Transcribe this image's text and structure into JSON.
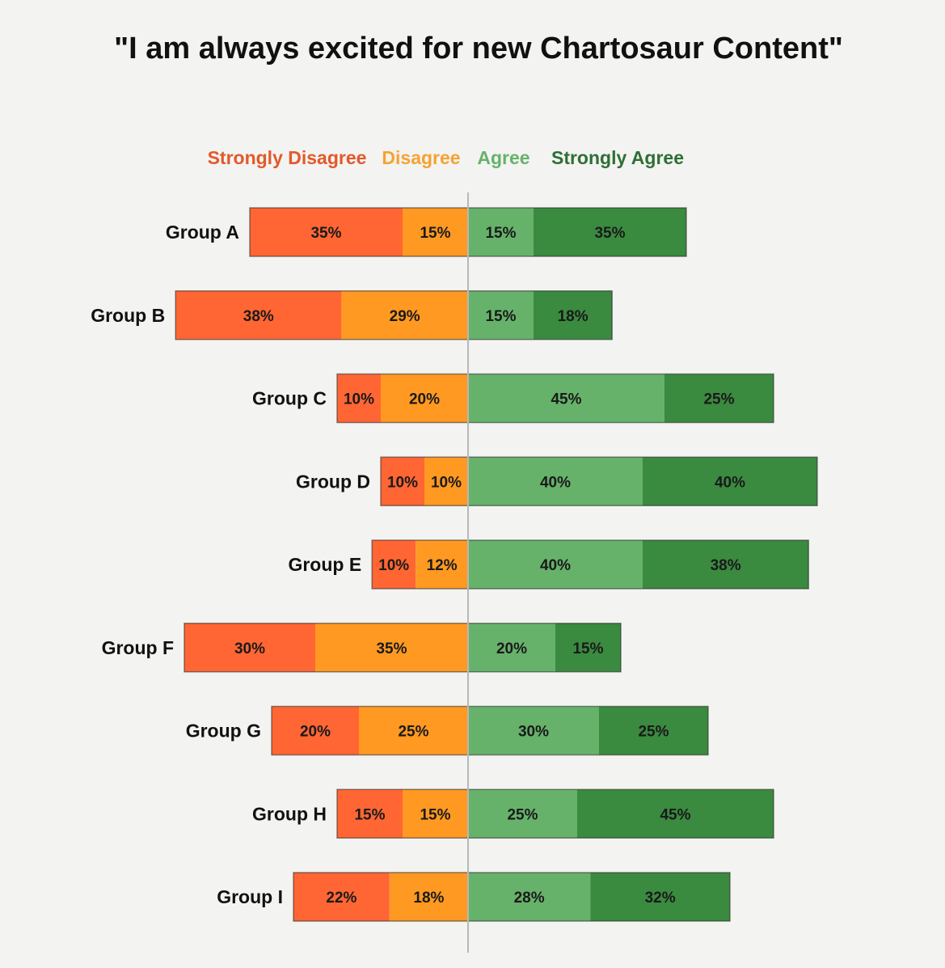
{
  "colors": {
    "strongly_disagree": "#ff6633",
    "disagree": "#ff9922",
    "agree": "#66b26b",
    "strongly_agree": "#3a8a40",
    "legend_strongly_disagree": "#e2592b",
    "legend_disagree": "#f5a332",
    "legend_agree": "#66b26b",
    "legend_strongly_agree": "#2f6f35",
    "divider": "#b8b8b8",
    "bar_outline": "#2a2a2a"
  },
  "chart_data": {
    "type": "bar",
    "orientation": "horizontal-diverging-stacked",
    "title": "\"I am always excited for new Chartosaur Content\"",
    "legend_position": "top",
    "grid": false,
    "categories": [
      "Group A",
      "Group B",
      "Group C",
      "Group D",
      "Group E",
      "Group F",
      "Group G",
      "Group H",
      "Group I"
    ],
    "series": [
      {
        "name": "Strongly Disagree",
        "side": "negative",
        "values": [
          35,
          38,
          10,
          10,
          10,
          30,
          20,
          15,
          22
        ]
      },
      {
        "name": "Disagree",
        "side": "negative",
        "values": [
          15,
          29,
          20,
          10,
          12,
          35,
          25,
          15,
          18
        ]
      },
      {
        "name": "Agree",
        "side": "positive",
        "values": [
          15,
          15,
          45,
          40,
          40,
          20,
          30,
          25,
          28
        ]
      },
      {
        "name": "Strongly Agree",
        "side": "positive",
        "values": [
          35,
          18,
          25,
          40,
          38,
          15,
          25,
          45,
          32
        ]
      }
    ]
  }
}
